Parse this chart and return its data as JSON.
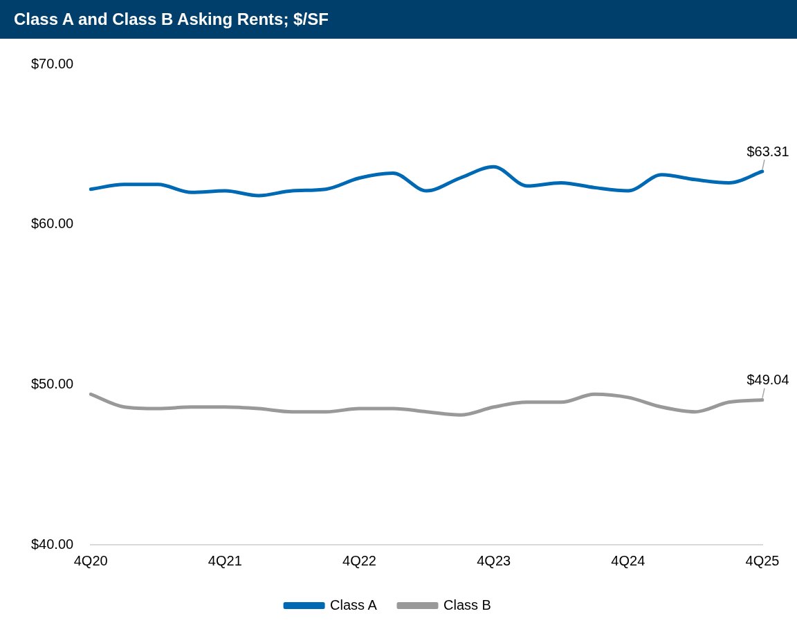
{
  "chart_data": {
    "type": "line",
    "title": "Class A and Class B Asking Rents; $/SF",
    "categories": [
      "4Q20",
      null,
      null,
      null,
      "4Q21",
      null,
      null,
      null,
      "4Q22",
      null,
      null,
      null,
      "4Q23",
      null,
      null,
      null,
      "4Q24",
      null,
      null,
      null,
      "4Q25"
    ],
    "series": [
      {
        "name": "Class A",
        "color": "#0069b4",
        "values": [
          62.2,
          62.5,
          62.5,
          62.0,
          62.1,
          61.8,
          62.1,
          62.2,
          62.9,
          63.2,
          62.1,
          62.9,
          63.6,
          62.4,
          62.6,
          62.3,
          62.1,
          63.1,
          62.8,
          62.6,
          63.31
        ],
        "value_labels": [
          null,
          null,
          null,
          null,
          null,
          null,
          null,
          null,
          null,
          null,
          null,
          null,
          null,
          null,
          null,
          null,
          null,
          null,
          null,
          null,
          "$63.31"
        ]
      },
      {
        "name": "Class B",
        "color": "#999999",
        "values": [
          49.4,
          48.6,
          48.5,
          48.6,
          48.6,
          48.5,
          48.3,
          48.3,
          48.5,
          48.5,
          48.3,
          48.1,
          48.6,
          48.9,
          48.9,
          49.4,
          49.2,
          48.6,
          48.3,
          48.9,
          49.04
        ],
        "value_labels": [
          null,
          null,
          null,
          null,
          null,
          null,
          null,
          null,
          null,
          null,
          null,
          null,
          null,
          null,
          null,
          null,
          null,
          null,
          null,
          null,
          "$49.04"
        ]
      }
    ],
    "ylim": [
      40,
      70
    ],
    "yticks": [
      {
        "value": 40,
        "label": "$40.00"
      },
      {
        "value": 50,
        "label": "$50.00"
      },
      {
        "value": 60,
        "label": "$60.00"
      },
      {
        "value": 70,
        "label": "$70.00"
      }
    ],
    "grid": false,
    "legend": "bottom",
    "marker": "none",
    "line_style": "solid"
  }
}
